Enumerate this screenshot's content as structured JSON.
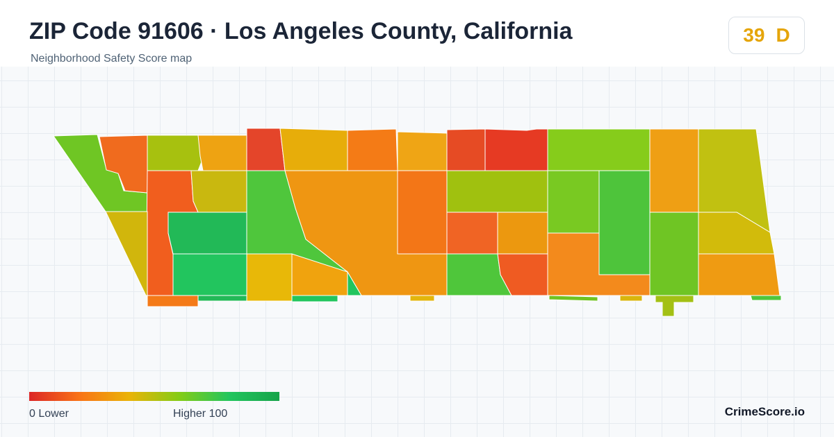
{
  "header": {
    "title": "ZIP Code 91606 · Los Angeles County, California",
    "subtitle": "Neighborhood Safety Score map"
  },
  "score_badge": {
    "score": "39",
    "grade": "D",
    "color": "#e5a50a"
  },
  "legend": {
    "low_label": "0  Lower",
    "high_label": "Higher  100",
    "gradient_colors": [
      "#dc2626",
      "#f97316",
      "#eab308",
      "#84cc16",
      "#22c55e",
      "#16a34a"
    ]
  },
  "brand": "CrimeScore.io",
  "map": {
    "region_colors": [
      "#6fc624",
      "#f06b1e",
      "#a7c10f",
      "#eea312",
      "#e4452a",
      "#e7ad0a",
      "#f47b16",
      "#efa515",
      "#e64b24",
      "#e63a23",
      "#86cc1b",
      "#ef9f14",
      "#c1c111",
      "#f15e1e",
      "#c9b80f",
      "#4fc63c",
      "#ef9612",
      "#f37617",
      "#a0c10f",
      "#79c922",
      "#4ec43b",
      "#d1b60c",
      "#22b957",
      "#f06424",
      "#ec980f",
      "#6fc524",
      "#22c55e",
      "#e8b808",
      "#f0a30e",
      "#4fc63b",
      "#ef5b22",
      "#f38a1c",
      "#d2bb0b",
      "#ef9b12",
      "#22c55e",
      "#f47a18",
      "#22b957",
      "#22c55e",
      "#e3b60c",
      "#70c322"
    ]
  }
}
